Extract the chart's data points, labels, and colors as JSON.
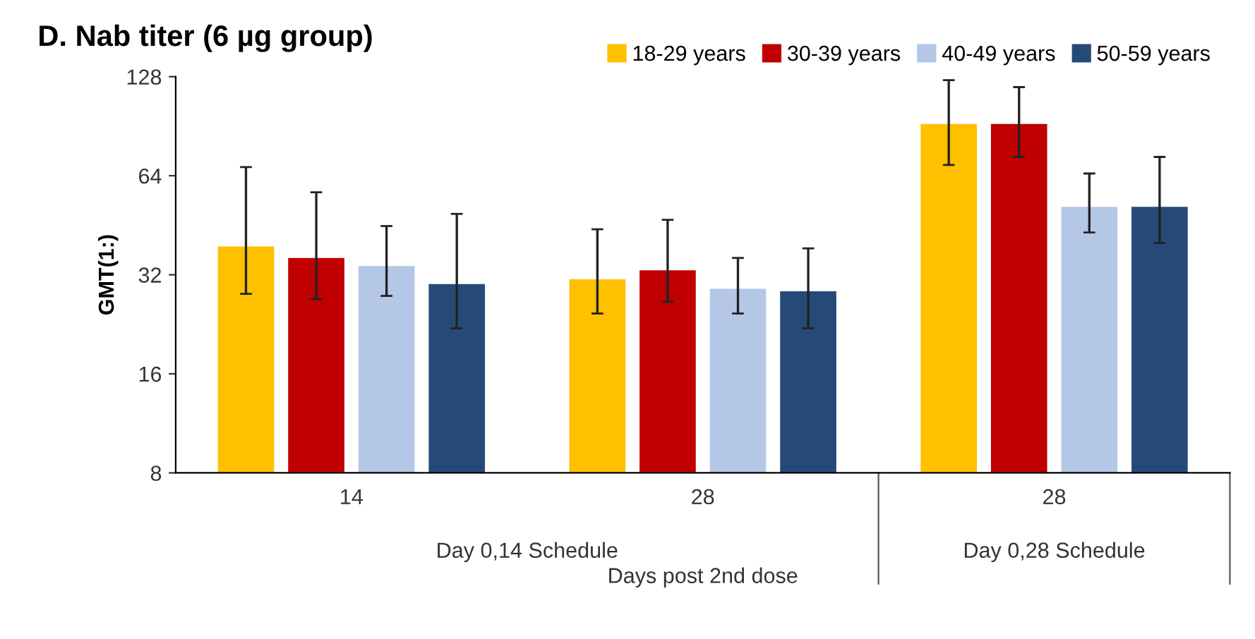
{
  "chart_data": {
    "type": "bar",
    "title": "D. Nab titer (6 µg group)",
    "ylabel": "GMT(1:)",
    "xlabel": "Days post 2nd dose",
    "categories": [
      "14",
      "28",
      "28"
    ],
    "annotations": [
      "Day 0,14 Schedule",
      "Day 0,28 Schedule"
    ],
    "series": [
      {
        "name": "18-29 years",
        "color": "#ffc000",
        "values": [
          39,
          31,
          92
        ],
        "errors": [
          [
            28,
            68
          ],
          [
            24.4,
            44
          ],
          [
            69,
            125
          ]
        ]
      },
      {
        "name": "30-39 years",
        "color": "#c00000",
        "values": [
          36,
          33,
          92
        ],
        "errors": [
          [
            27,
            57
          ],
          [
            26.5,
            47
          ],
          [
            73,
            119
          ]
        ]
      },
      {
        "name": "40-49 years",
        "color": "#b4c7e7",
        "values": [
          34,
          29,
          51.5
        ],
        "errors": [
          [
            27.6,
            45
          ],
          [
            24.4,
            36
          ],
          [
            43,
            65
          ]
        ]
      },
      {
        "name": "50-59 years",
        "color": "#264a78",
        "values": [
          30,
          28.5,
          51.5
        ],
        "errors": [
          [
            22,
            49
          ],
          [
            22,
            38.5
          ],
          [
            40,
            73
          ]
        ]
      }
    ],
    "log": "y",
    "ylim": [
      8,
      128
    ],
    "yticks": [
      8,
      16,
      32,
      64,
      128
    ],
    "grid": false,
    "legend": "top right"
  }
}
